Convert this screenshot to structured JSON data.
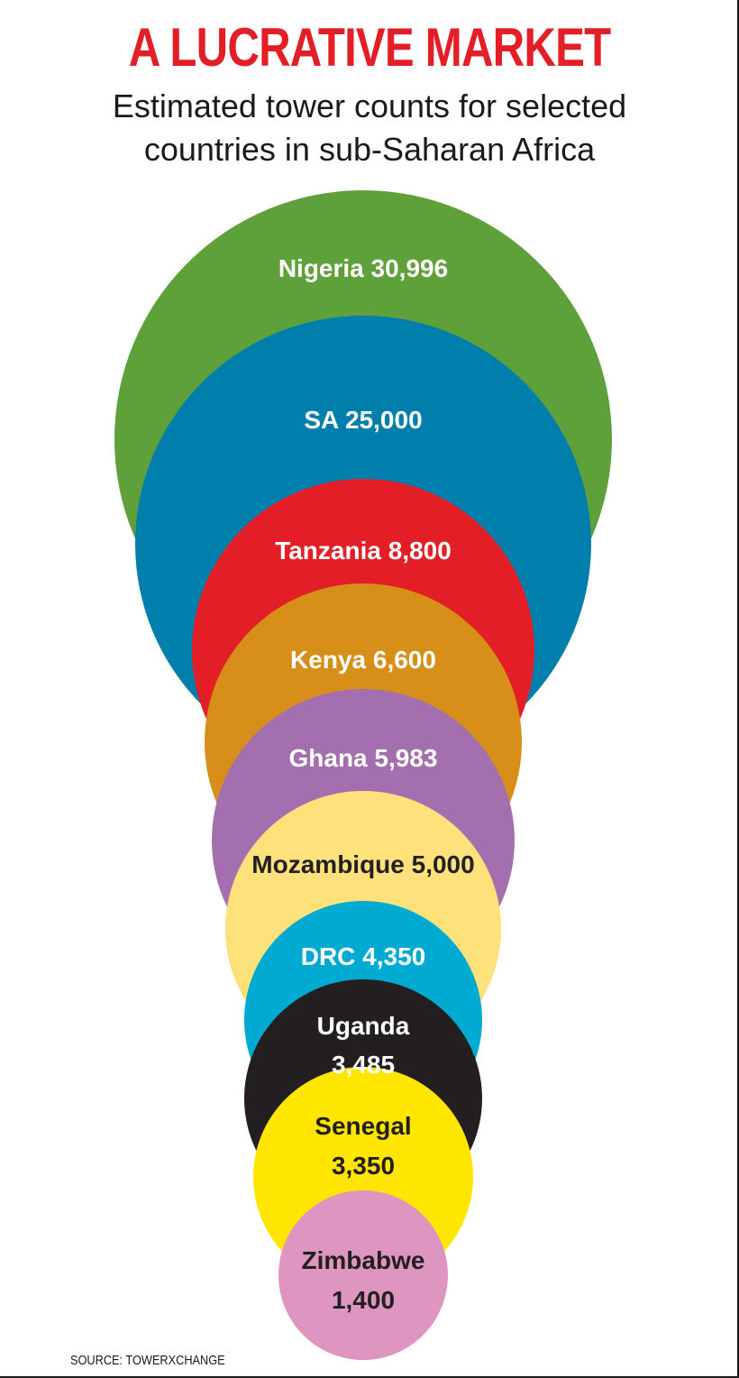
{
  "title": "A LUCRATIVE MARKET",
  "subtitle": "Estimated tower counts for selected countries in sub-Saharan Africa",
  "source": "SOURCE: TOWERXCHANGE",
  "colors": {
    "title": "#e41e26",
    "dark_text": "#231f20",
    "light_text": "#ffffff"
  },
  "chart_data": {
    "type": "bubble",
    "title": "A LUCRATIVE MARKET",
    "subtitle": "Estimated tower counts for selected countries in sub-Saharan Africa",
    "categories": [
      "Nigeria",
      "SA",
      "Tanzania",
      "Kenya",
      "Ghana",
      "Mozambique",
      "DRC",
      "Uganda",
      "Senegal",
      "Zimbabwe"
    ],
    "values": [
      30996,
      25000,
      8800,
      6600,
      5983,
      5000,
      4350,
      3485,
      3350,
      1400
    ],
    "labels": [
      [
        "Nigeria 30,996"
      ],
      [
        "SA 25,000"
      ],
      [
        "Tanzania 8,800"
      ],
      [
        "Kenya 6,600"
      ],
      [
        "Ghana 5,983"
      ],
      [
        "Mozambique 5,000"
      ],
      [
        "DRC 4,350"
      ],
      [
        "Uganda",
        "3,485"
      ],
      [
        "Senegal",
        "3,350"
      ],
      [
        "Zimbabwe",
        "1,400"
      ]
    ],
    "colors": [
      "#5ea13a",
      "#007fad",
      "#e41e26",
      "#d88f1a",
      "#a46fae",
      "#fde17a",
      "#00aad0",
      "#231f20",
      "#ffe600",
      "#de95bf"
    ],
    "text_colors": [
      "#ffffff",
      "#ffffff",
      "#ffffff",
      "#ffffff",
      "#ffffff",
      "#231f20",
      "#ffffff",
      "#ffffff",
      "#231f20",
      "#231f20"
    ]
  }
}
